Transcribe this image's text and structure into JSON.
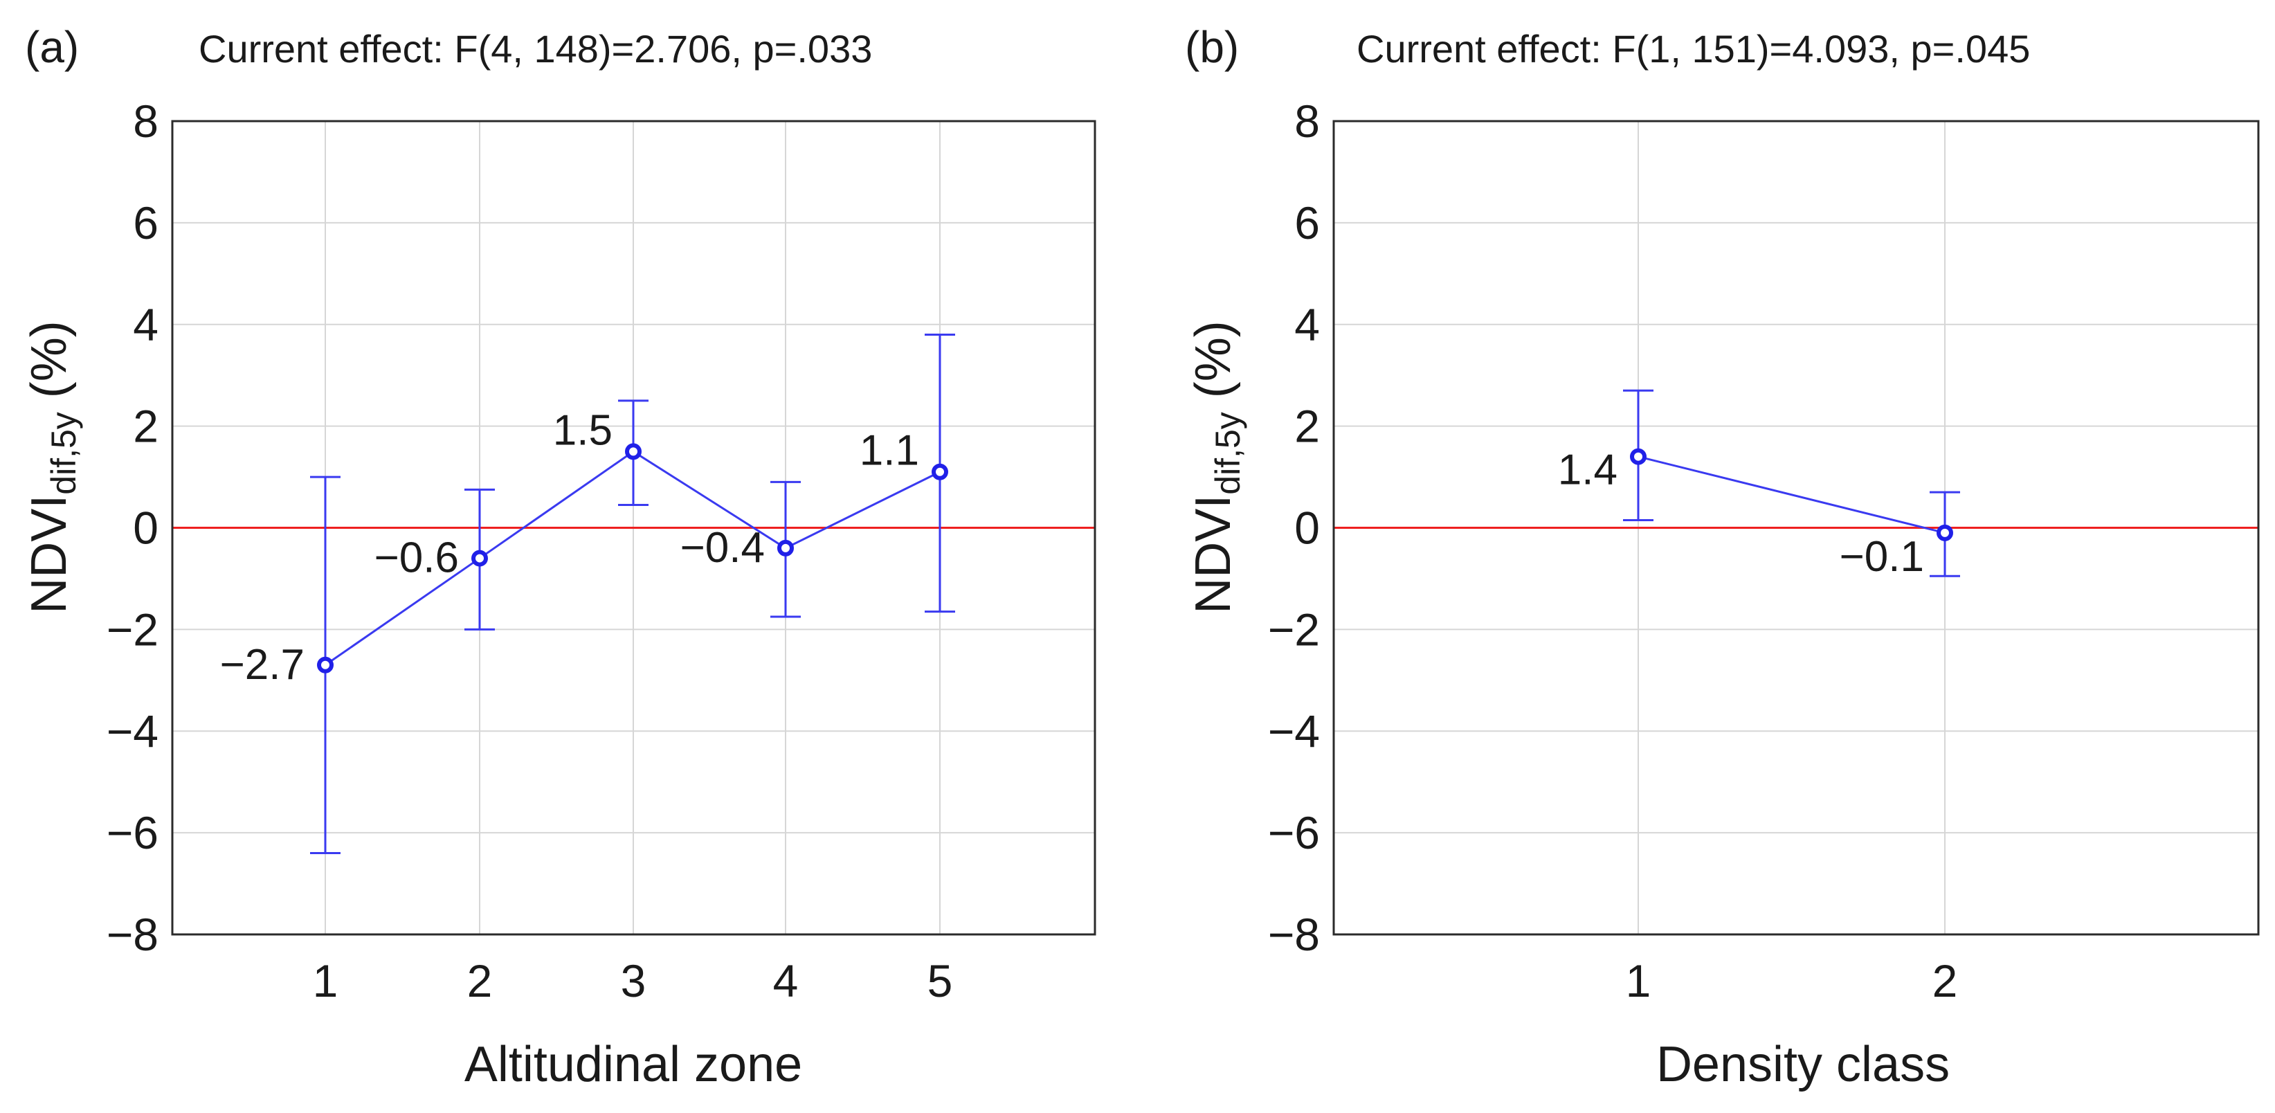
{
  "chart_data": [
    {
      "type": "line",
      "panel_label": "(a)",
      "title": "Current effect: F(4, 148)=2.706, p=.033",
      "xlabel": "Altitudinal zone",
      "ylabel_main": "NDVI",
      "ylabel_sub": "dif,5y",
      "ylabel_suffix": " (%)",
      "categories": [
        "1",
        "2",
        "3",
        "4",
        "5"
      ],
      "values": [
        -2.7,
        -0.6,
        1.5,
        -0.4,
        1.1
      ],
      "value_labels": [
        "−2.7",
        "−0.6",
        "1.5",
        "−0.4",
        "1.1"
      ],
      "ci_lower": [
        -6.4,
        -2.0,
        0.45,
        -1.75,
        -1.65
      ],
      "ci_upper": [
        1.0,
        0.75,
        2.5,
        0.9,
        3.8
      ],
      "ylim": [
        -8,
        8
      ],
      "yticks": [
        8,
        6,
        4,
        2,
        0,
        -2,
        -4,
        -6,
        -8
      ],
      "ytick_labels": [
        "8",
        "6",
        "4",
        "2",
        "0",
        "−2",
        "−4",
        "−6",
        "−8"
      ],
      "reference_line": 0,
      "grid": true,
      "series_color": "#3a3af0",
      "reference_color": "#ee2020"
    },
    {
      "type": "line",
      "panel_label": "(b)",
      "title": "Current effect: F(1, 151)=4.093, p=.045",
      "xlabel": "Density class",
      "ylabel_main": "NDVI",
      "ylabel_sub": "dif,5y",
      "ylabel_suffix": " (%)",
      "categories": [
        "1",
        "2"
      ],
      "values": [
        1.4,
        -0.1
      ],
      "value_labels": [
        "1.4",
        "−0.1"
      ],
      "ci_lower": [
        0.15,
        -0.95
      ],
      "ci_upper": [
        2.7,
        0.7
      ],
      "ylim": [
        -8,
        8
      ],
      "yticks": [
        8,
        6,
        4,
        2,
        0,
        -2,
        -4,
        -6,
        -8
      ],
      "ytick_labels": [
        "8",
        "6",
        "4",
        "2",
        "0",
        "−2",
        "−4",
        "−6",
        "−8"
      ],
      "reference_line": 0,
      "grid": true,
      "series_color": "#3a3af0",
      "reference_color": "#ee2020"
    }
  ]
}
